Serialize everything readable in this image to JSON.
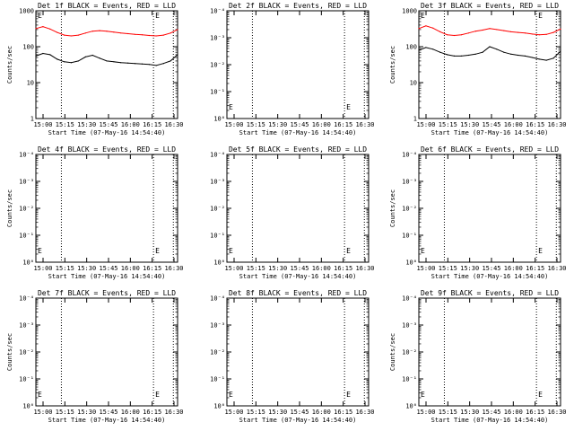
{
  "chart_data": [
    {
      "type": "line",
      "title": "Det 1f BLACK = Events, RED = LLD",
      "xlabel": "Start Time (07-May-16 14:54:40)",
      "ylabel": "Counts/sec",
      "scale": "log",
      "ylim": [
        1,
        1000
      ],
      "ytick_labels": [
        "1",
        "10",
        "100",
        "1000"
      ],
      "xtick_labels": [
        "15:00",
        "15:15",
        "15:30",
        "15:45",
        "16:00",
        "16:15",
        "16:30"
      ],
      "series": [
        {
          "color": "#ff0000",
          "x": [
            0,
            0.05,
            0.1,
            0.15,
            0.2,
            0.25,
            0.3,
            0.35,
            0.4,
            0.45,
            0.5,
            0.55,
            0.6,
            0.65,
            0.7,
            0.75,
            0.8,
            0.85,
            0.9,
            0.95,
            1.0
          ],
          "values": [
            320,
            360,
            310,
            250,
            210,
            200,
            210,
            240,
            270,
            280,
            270,
            255,
            240,
            230,
            220,
            215,
            205,
            200,
            210,
            240,
            300
          ]
        },
        {
          "color": "#000000",
          "x": [
            0,
            0.05,
            0.1,
            0.15,
            0.2,
            0.25,
            0.3,
            0.35,
            0.4,
            0.45,
            0.5,
            0.55,
            0.6,
            0.65,
            0.7,
            0.75,
            0.8,
            0.85,
            0.9,
            0.95,
            1.0
          ],
          "values": [
            55,
            65,
            60,
            45,
            38,
            36,
            40,
            52,
            58,
            48,
            40,
            38,
            36,
            35,
            34,
            33,
            32,
            30,
            34,
            40,
            60
          ]
        }
      ]
    },
    {
      "type": "line",
      "title": "Det 2f BLACK = Events, RED = LLD",
      "xlabel": "Start Time (07-May-16 14:54:40)",
      "ylabel": "",
      "scale": "log_sci",
      "ylim": [
        1,
        0.0001
      ],
      "ytick_labels": [
        "10⁰",
        "10⁻¹",
        "10⁻²",
        "10⁻³",
        "10⁻⁴"
      ],
      "xtick_labels": [
        "15:00",
        "15:15",
        "15:30",
        "15:45",
        "16:00",
        "16:15",
        "16:30"
      ],
      "series": []
    },
    {
      "type": "line",
      "title": "Det 3f BLACK = Events, RED = LLD",
      "xlabel": "Start Time (07-May-16 14:54:40)",
      "ylabel": "Counts/sec",
      "scale": "log",
      "ylim": [
        1,
        1000
      ],
      "ytick_labels": [
        "1",
        "10",
        "100",
        "1000"
      ],
      "xtick_labels": [
        "15:00",
        "15:15",
        "15:30",
        "15:45",
        "16:00",
        "16:15",
        "16:30"
      ],
      "series": [
        {
          "color": "#ff0000",
          "x": [
            0,
            0.05,
            0.1,
            0.15,
            0.2,
            0.25,
            0.3,
            0.35,
            0.4,
            0.45,
            0.5,
            0.55,
            0.6,
            0.65,
            0.7,
            0.75,
            0.8,
            0.85,
            0.9,
            0.95,
            1.0
          ],
          "values": [
            320,
            380,
            330,
            260,
            215,
            205,
            215,
            240,
            270,
            290,
            320,
            300,
            280,
            260,
            250,
            240,
            225,
            215,
            220,
            250,
            310
          ]
        },
        {
          "color": "#000000",
          "x": [
            0,
            0.05,
            0.1,
            0.15,
            0.2,
            0.25,
            0.3,
            0.35,
            0.4,
            0.45,
            0.5,
            0.55,
            0.6,
            0.65,
            0.7,
            0.75,
            0.8,
            0.85,
            0.9,
            0.95,
            1.0
          ],
          "values": [
            80,
            95,
            85,
            70,
            60,
            55,
            55,
            58,
            62,
            70,
            100,
            85,
            70,
            62,
            58,
            55,
            50,
            45,
            42,
            48,
            75
          ]
        }
      ]
    },
    {
      "type": "line",
      "title": "Det 4f BLACK = Events, RED = LLD",
      "xlabel": "Start Time (07-May-16 14:54:40)",
      "ylabel": "Counts/sec",
      "scale": "log_sci",
      "ylim": [
        1,
        0.0001
      ],
      "ytick_labels": [
        "10⁰",
        "10⁻¹",
        "10⁻²",
        "10⁻³",
        "10⁻⁴"
      ],
      "xtick_labels": [
        "15:00",
        "15:15",
        "15:30",
        "15:45",
        "16:00",
        "16:15",
        "16:30"
      ],
      "series": []
    },
    {
      "type": "line",
      "title": "Det 5f BLACK = Events, RED = LLD",
      "xlabel": "Start Time (07-May-16 14:54:40)",
      "ylabel": "",
      "scale": "log_sci",
      "ylim": [
        1,
        0.0001
      ],
      "ytick_labels": [
        "10⁰",
        "10⁻¹",
        "10⁻²",
        "10⁻³",
        "10⁻⁴"
      ],
      "xtick_labels": [
        "15:00",
        "15:15",
        "15:30",
        "15:45",
        "16:00",
        "16:15",
        "16:30"
      ],
      "series": []
    },
    {
      "type": "line",
      "title": "Det 6f BLACK = Events, RED = LLD",
      "xlabel": "Start Time (07-May-16 14:54:40)",
      "ylabel": "Counts/sec",
      "scale": "log_sci",
      "ylim": [
        1,
        0.0001
      ],
      "ytick_labels": [
        "10⁰",
        "10⁻¹",
        "10⁻²",
        "10⁻³",
        "10⁻⁴"
      ],
      "xtick_labels": [
        "15:00",
        "15:15",
        "15:30",
        "15:45",
        "16:00",
        "16:15",
        "16:30"
      ],
      "series": []
    },
    {
      "type": "line",
      "title": "Det 7f BLACK = Events, RED = LLD",
      "xlabel": "Start Time (07-May-16 14:54:40)",
      "ylabel": "Counts/sec",
      "scale": "log_sci",
      "ylim": [
        1,
        0.0001
      ],
      "ytick_labels": [
        "10⁰",
        "10⁻¹",
        "10⁻²",
        "10⁻³",
        "10⁻⁴"
      ],
      "xtick_labels": [
        "15:00",
        "15:15",
        "15:30",
        "15:45",
        "16:00",
        "16:15",
        "16:30"
      ],
      "series": []
    },
    {
      "type": "line",
      "title": "Det 8f BLACK = Events, RED = LLD",
      "xlabel": "Start Time (07-May-16 14:54:40)",
      "ylabel": "",
      "scale": "log_sci",
      "ylim": [
        1,
        0.0001
      ],
      "ytick_labels": [
        "10⁰",
        "10⁻¹",
        "10⁻²",
        "10⁻³",
        "10⁻⁴"
      ],
      "xtick_labels": [
        "15:00",
        "15:15",
        "15:30",
        "15:45",
        "16:00",
        "16:15",
        "16:30"
      ],
      "series": []
    },
    {
      "type": "line",
      "title": "Det 9f BLACK = Events, RED = LLD",
      "xlabel": "Start Time (07-May-16 14:54:40)",
      "ylabel": "Counts/sec",
      "scale": "log_sci",
      "ylim": [
        1,
        0.0001
      ],
      "ytick_labels": [
        "10⁰",
        "10⁻¹",
        "10⁻²",
        "10⁻³",
        "10⁻⁴"
      ],
      "xtick_labels": [
        "15:00",
        "15:15",
        "15:30",
        "15:45",
        "16:00",
        "16:15",
        "16:30"
      ],
      "series": []
    }
  ],
  "marker_text": "E"
}
